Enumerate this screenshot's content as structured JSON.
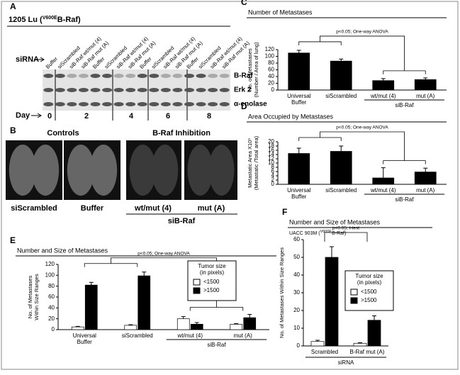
{
  "blot": {
    "panel": "A",
    "title": "1205 Lu (",
    "title_sup": "V600E",
    "title_after": "B-Raf)",
    "row_axis": "siRNA",
    "lanes": [
      "Buffer",
      "siScrambled",
      "siB-Raf wt/mut (4)",
      "siB-Raf mut (A)",
      "Buffer",
      "siScrambled",
      "siB-Raf wt/mut (4)",
      "siB-Raf mut (A)",
      "Buffer",
      "siScrambled",
      "siB-Raf wt/mut (4)",
      "siB-Raf mut (A)",
      "Buffer",
      "siScrambled",
      "siB-Raf wt/mut (4)",
      "siB-Raf mut (A)"
    ],
    "rows": [
      "B-Raf",
      "Erk 2",
      "α-enolase"
    ],
    "day_label": "Day",
    "days": [
      "0",
      "2",
      "4",
      "6",
      "8"
    ]
  },
  "images": {
    "panel": "B",
    "groups": [
      "Controls",
      "B-Raf Inhibition"
    ],
    "labels": [
      "siScrambled",
      "Buffer",
      "wt/mut (4)",
      "mut (A)"
    ],
    "group_label": "siB-Raf"
  },
  "chart_data": [
    {
      "type": "bar",
      "panel": "C",
      "title": "Number of Metastases",
      "annotation": "p<0.05; One-way ANOVA",
      "ylabel": [
        "No. of Metastases",
        "(Number / Area of lung)"
      ],
      "categories": [
        "Universal Buffer",
        "siScrambled",
        "wt/mut (4)",
        "mut (A)"
      ],
      "group_label": "siB-Raf",
      "series": [
        {
          "color": "#000000",
          "values": [
            110,
            86,
            28,
            31
          ],
          "errors": [
            8,
            6,
            6,
            5
          ]
        }
      ],
      "ylim": [
        0,
        120
      ],
      "yticks": [
        0,
        20,
        40,
        60,
        80,
        100,
        120
      ]
    },
    {
      "type": "bar",
      "panel": "D",
      "title": "Area Occupied by Metastases",
      "annotation": "p<0.05; One-way ANOVA",
      "ylabel": [
        "Metastatic Area X10³",
        "(Metastatic /Total area)"
      ],
      "categories": [
        "Universal Buffer",
        "siScrambled",
        "wt/mut (4)",
        "mut (A)"
      ],
      "group_label": "siB-Raf",
      "series": [
        {
          "color": "#000000",
          "values": [
            14.5,
            15.5,
            3,
            5.8
          ],
          "errors": [
            2.5,
            2.5,
            4.8,
            1.8
          ]
        }
      ],
      "ylim": [
        0,
        20
      ],
      "yticks": [
        0,
        2,
        4,
        6,
        8,
        10,
        12,
        14,
        16,
        18,
        20
      ]
    },
    {
      "type": "bar",
      "panel": "E",
      "title": "Number and Size of Metastases",
      "annotation": "p<0.05; One-way ANOVA",
      "ylabel": [
        "No. of Metastases",
        "Within Size Ranges"
      ],
      "categories": [
        "Universal Buffer",
        "siScrambled",
        "wt/mut (4)",
        "mut (A)"
      ],
      "group_label": "siB-Raf",
      "legend_title": [
        "Tumor size",
        "(in pixels)"
      ],
      "series": [
        {
          "name": "<1500",
          "color": "#ffffff",
          "values": [
            5,
            8,
            20,
            10
          ],
          "errors": [
            1,
            1,
            4,
            1
          ]
        },
        {
          "name": ">1500",
          "color": "#000000",
          "values": [
            82,
            99,
            10,
            22
          ],
          "errors": [
            5,
            7,
            3,
            6
          ]
        }
      ],
      "ylim": [
        0,
        120
      ],
      "yticks": [
        0,
        20,
        40,
        60,
        80,
        100,
        120
      ]
    },
    {
      "type": "bar",
      "panel": "F",
      "title": "Number and Size of Metastases",
      "subtitle": "UACC 903M (",
      "subtitle_sup": "V600E",
      "subtitle_after": "B-Raf)",
      "annotation": "p<0.05; t-test",
      "ylabel": [
        "No. of Metastases Within Size Ranges"
      ],
      "categories": [
        "Scrambled",
        "B-Raf mut (A)"
      ],
      "group_label": "siRNA",
      "legend_title": [
        "Tumor size",
        "(in pixels)"
      ],
      "series": [
        {
          "name": "<1500",
          "color": "#ffffff",
          "values": [
            2.5,
            1.5
          ],
          "errors": [
            0.7,
            0.3
          ]
        },
        {
          "name": ">1500",
          "color": "#000000",
          "values": [
            50,
            14.5
          ],
          "errors": [
            6,
            2.5
          ]
        }
      ],
      "ylim": [
        0,
        60
      ],
      "yticks": [
        0,
        10,
        20,
        30,
        40,
        50,
        60
      ]
    }
  ]
}
